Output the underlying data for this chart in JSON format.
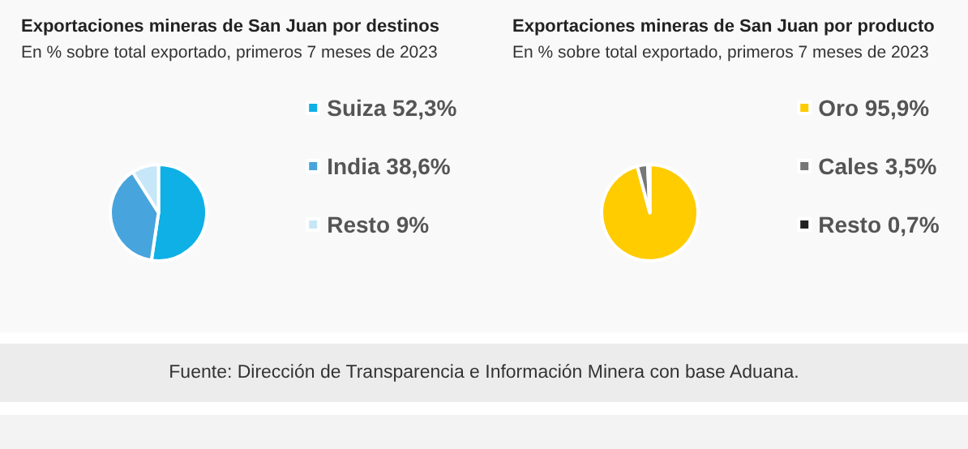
{
  "chart_data": [
    {
      "type": "pie",
      "title": "Exportaciones mineras de San Juan por destinos",
      "subtitle": "En % sobre total exportado, primeros 7 meses de 2023",
      "categories": [
        "Suiza",
        "India",
        "Resto"
      ],
      "values": [
        52.3,
        38.6,
        9
      ],
      "value_labels": [
        "52,3%",
        "38,6%",
        "9%"
      ],
      "colors": [
        "#0eb0e6",
        "#47a4dc",
        "#c6e7f7"
      ],
      "legend": "right"
    },
    {
      "type": "pie",
      "title": "Exportaciones mineras de San Juan por producto",
      "subtitle": "En % sobre total exportado, primeros 7 meses de 2023",
      "categories": [
        "Oro",
        "Cales",
        "Resto"
      ],
      "values": [
        95.9,
        3.5,
        0.7
      ],
      "value_labels": [
        "95,9%",
        "3,5%",
        "0,7%"
      ],
      "colors": [
        "#ffcc00",
        "#777777",
        "#222222"
      ],
      "legend": "right",
      "annotations": [
        "Fuente: Dirección de Transparencia e Información Minera con base Aduana."
      ]
    }
  ]
}
